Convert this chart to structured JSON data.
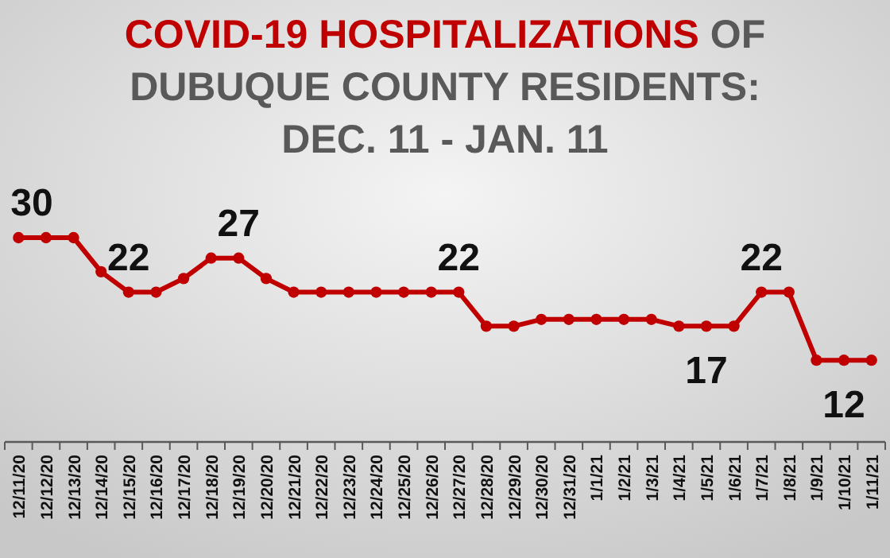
{
  "chart_data": {
    "type": "line",
    "title": "COVID-19 HOSPITALIZATIONS OF DUBUQUE COUNTY RESIDENTS: DEC. 11 - JAN. 11",
    "categories": [
      "12/11/20",
      "12/12/20",
      "12/13/20",
      "12/14/20",
      "12/15/20",
      "12/16/20",
      "12/17/20",
      "12/18/20",
      "12/19/20",
      "12/20/20",
      "12/21/20",
      "12/22/20",
      "12/23/20",
      "12/24/20",
      "12/25/20",
      "12/26/20",
      "12/27/20",
      "12/28/20",
      "12/29/20",
      "12/30/20",
      "12/31/20",
      "1/1/21",
      "1/2/21",
      "1/3/21",
      "1/4/21",
      "1/5/21",
      "1/6/21",
      "1/7/21",
      "1/8/21",
      "1/9/21",
      "1/10/21",
      "1/11/21"
    ],
    "series": [
      {
        "color": "#c00000",
        "values": [
          30,
          30,
          30,
          25,
          22,
          22,
          24,
          27,
          27,
          24,
          22,
          22,
          22,
          22,
          22,
          22,
          22,
          17,
          17,
          18,
          18,
          18,
          18,
          18,
          17,
          17,
          17,
          22,
          22,
          12,
          12,
          12
        ],
        "value_labels": [
          "30",
          null,
          null,
          null,
          "22",
          null,
          null,
          null,
          "27",
          null,
          null,
          null,
          null,
          null,
          null,
          null,
          "22",
          null,
          null,
          null,
          null,
          null,
          null,
          null,
          null,
          "17",
          null,
          "22",
          null,
          null,
          "12",
          null
        ]
      }
    ],
    "marker": "circle",
    "line_style": "solid"
  }
}
